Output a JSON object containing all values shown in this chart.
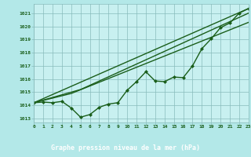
{
  "title": "Graphe pression niveau de la mer (hPa)",
  "bg_color": "#b3e8e8",
  "plot_bg": "#c8f0f0",
  "grid_color": "#88bbbb",
  "line_color": "#1a5e1a",
  "label_bg": "#2a6e2a",
  "label_fg": "#ffffff",
  "xlim": [
    0,
    23
  ],
  "ylim": [
    1012.7,
    1021.7
  ],
  "yticks": [
    1013,
    1014,
    1015,
    1016,
    1017,
    1018,
    1019,
    1020,
    1021
  ],
  "xticks": [
    0,
    1,
    2,
    3,
    4,
    5,
    6,
    7,
    8,
    9,
    10,
    11,
    12,
    13,
    14,
    15,
    16,
    17,
    18,
    19,
    20,
    21,
    22,
    23
  ],
  "series": [
    {
      "x": [
        0,
        1,
        2,
        3,
        4,
        5,
        6,
        7,
        8,
        9,
        10,
        11,
        12,
        13,
        14,
        15,
        16,
        17,
        18,
        19,
        20,
        21,
        22,
        23
      ],
      "y": [
        1014.2,
        1014.25,
        1014.2,
        1014.3,
        1013.8,
        1013.1,
        1013.3,
        1013.85,
        1014.1,
        1014.2,
        1015.15,
        1015.8,
        1016.55,
        1015.85,
        1015.8,
        1016.15,
        1016.1,
        1017.0,
        1018.3,
        1019.05,
        1019.9,
        1020.25,
        1021.0,
        1021.35
      ],
      "marker": "D",
      "markersize": 2.0,
      "linewidth": 1.0
    },
    {
      "x": [
        0,
        23
      ],
      "y": [
        1014.2,
        1021.35
      ],
      "marker": null,
      "markersize": 0,
      "linewidth": 1.0
    },
    {
      "x": [
        0,
        4,
        23
      ],
      "y": [
        1014.2,
        1014.9,
        1020.3
      ],
      "marker": null,
      "markersize": 0,
      "linewidth": 1.0
    },
    {
      "x": [
        0,
        5,
        23
      ],
      "y": [
        1014.2,
        1015.2,
        1021.0
      ],
      "marker": null,
      "markersize": 0,
      "linewidth": 1.0
    }
  ]
}
